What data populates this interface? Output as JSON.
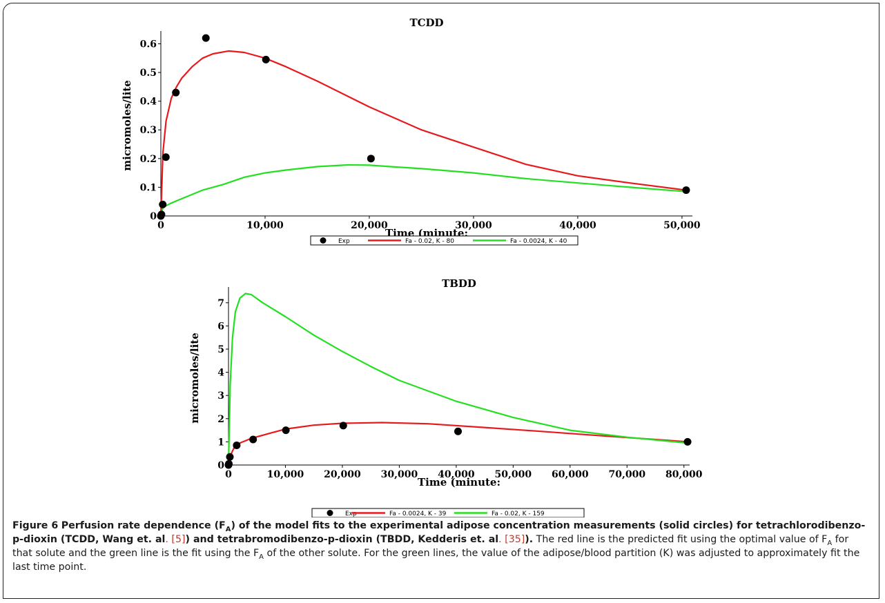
{
  "charts": [
    {
      "title": "TCDD",
      "xlabel": "Time (minute:",
      "ylabel": "micromoles/lite",
      "xlim": [
        0,
        51000
      ],
      "ylim": [
        0,
        0.63
      ],
      "xticks": [
        0,
        10000,
        20000,
        30000,
        40000,
        50000
      ],
      "xtick_labels": [
        "0",
        "10,000",
        "20,000",
        "30,000",
        "40,000",
        "50,000"
      ],
      "yticks": [
        0,
        0.1,
        0.2,
        0.3,
        0.4,
        0.5,
        0.6
      ],
      "ytick_labels": [
        "0",
        "0.1",
        "0.2",
        "0.3",
        "0.4",
        "0.5",
        "0.6"
      ],
      "legend": [
        "Exp",
        "Fa - 0.02, K - 80",
        "Fa - 0.0024, K - 40"
      ]
    },
    {
      "title": "TBDD",
      "xlabel": "Time (minute:",
      "ylabel": "micromoles/lite",
      "xlim": [
        0,
        81000
      ],
      "ylim": [
        0,
        7.5
      ],
      "xticks": [
        0,
        10000,
        20000,
        30000,
        40000,
        50000,
        60000,
        70000,
        80000
      ],
      "xtick_labels": [
        "0",
        "10,000",
        "20,000",
        "30,000",
        "40,000",
        "50,000",
        "60,000",
        "70,000",
        "80,000"
      ],
      "yticks": [
        0,
        1,
        2,
        3,
        4,
        5,
        6,
        7
      ],
      "ytick_labels": [
        "0",
        "1",
        "2",
        "3",
        "4",
        "5",
        "6",
        "7"
      ],
      "legend": [
        "Exp",
        "Fa - 0.0024, K - 39",
        "Fa - 0.02, K - 159"
      ]
    }
  ],
  "chart_data": [
    {
      "type": "scatter",
      "title": "TCDD",
      "xlabel": "Time (minute:",
      "ylabel": "micromoles/lite",
      "xlim": [
        0,
        51000
      ],
      "ylim": [
        0,
        0.63
      ],
      "series": [
        {
          "name": "Exp",
          "kind": "points",
          "color": "#000000",
          "x": [
            0,
            60,
            180,
            480,
            1440,
            4320,
            10080,
            20160,
            50400
          ],
          "y": [
            0.0,
            0.005,
            0.04,
            0.205,
            0.43,
            0.62,
            0.545,
            0.2,
            0.09
          ]
        },
        {
          "name": "Fa - 0.02, K - 80",
          "kind": "line",
          "color": "#e8191d",
          "x": [
            0,
            200,
            500,
            1000,
            1500,
            2000,
            3000,
            4000,
            5000,
            6500,
            8000,
            10000,
            12000,
            15000,
            20000,
            25000,
            30000,
            35000,
            40000,
            45000,
            50400
          ],
          "y": [
            0,
            0.22,
            0.33,
            0.41,
            0.45,
            0.48,
            0.52,
            0.55,
            0.565,
            0.575,
            0.57,
            0.55,
            0.52,
            0.47,
            0.38,
            0.3,
            0.24,
            0.18,
            0.14,
            0.115,
            0.09
          ]
        },
        {
          "name": "Fa - 0.0024, K - 40",
          "kind": "line",
          "color": "#22e01f",
          "x": [
            0,
            200,
            1000,
            2000,
            4000,
            6000,
            8000,
            10000,
            12000,
            15000,
            18000,
            20000,
            22000,
            25000,
            30000,
            35000,
            40000,
            45000,
            50400
          ],
          "y": [
            0,
            0.03,
            0.045,
            0.06,
            0.09,
            0.11,
            0.135,
            0.15,
            0.16,
            0.172,
            0.178,
            0.177,
            0.172,
            0.165,
            0.15,
            0.13,
            0.115,
            0.1,
            0.085
          ]
        }
      ]
    },
    {
      "type": "scatter",
      "title": "TBDD",
      "xlabel": "Time (minute:",
      "ylabel": "micromoles/lite",
      "xlim": [
        0,
        81000
      ],
      "ylim": [
        0,
        7.5
      ],
      "series": [
        {
          "name": "Exp",
          "kind": "points",
          "color": "#000000",
          "x": [
            0,
            60,
            240,
            1440,
            4320,
            10080,
            20160,
            40320,
            80640
          ],
          "y": [
            0.0,
            0.05,
            0.35,
            0.85,
            1.1,
            1.5,
            1.7,
            1.45,
            1.0
          ]
        },
        {
          "name": "Fa - 0.0024, K - 39",
          "kind": "line",
          "color": "#e8191d",
          "x": [
            0,
            300,
            1000,
            2000,
            4000,
            7000,
            10000,
            15000,
            20000,
            27000,
            35000,
            45000,
            55000,
            65000,
            75000,
            80640
          ],
          "y": [
            0,
            0.4,
            0.75,
            0.95,
            1.15,
            1.35,
            1.55,
            1.72,
            1.8,
            1.83,
            1.78,
            1.62,
            1.45,
            1.27,
            1.1,
            1.0
          ]
        },
        {
          "name": "Fa - 0.02, K - 159",
          "kind": "line",
          "color": "#22e01f",
          "x": [
            0,
            300,
            700,
            1200,
            2000,
            3000,
            4000,
            6000,
            10000,
            15000,
            20000,
            25000,
            30000,
            40000,
            50000,
            60000,
            70000,
            80640
          ],
          "y": [
            0,
            3.5,
            5.5,
            6.6,
            7.2,
            7.4,
            7.35,
            7.0,
            6.4,
            5.6,
            4.9,
            4.25,
            3.65,
            2.75,
            2.05,
            1.5,
            1.2,
            0.95
          ]
        }
      ]
    }
  ],
  "caption": {
    "lead": "Figure 6",
    "bold_text": "Perfusion rate dependence (F",
    "bold_sub": "A",
    "bold_mid": ") of the model fits to the experimental adipose concentration measurements (solid circles) for tetrachlorodibenzo-p-dioxin (TCDD, Wang et. al",
    "ref1": ". [5]",
    "bold_mid2": ") and tetrabromodibenzo-p-dioxin (TBDD, Kedderis et. al",
    "ref2": ". [35]",
    "bold_end": ").",
    "text1": " The red line is the predicted fit using the optimal value of F",
    "sub1": "A",
    "text2": " for that solute and the green line is the fit using the F",
    "sub2": "A",
    "text3": " of the other solute. For the green lines, the value of the adipose/blood partition (K) was adjusted to approximately fit the last time point."
  }
}
